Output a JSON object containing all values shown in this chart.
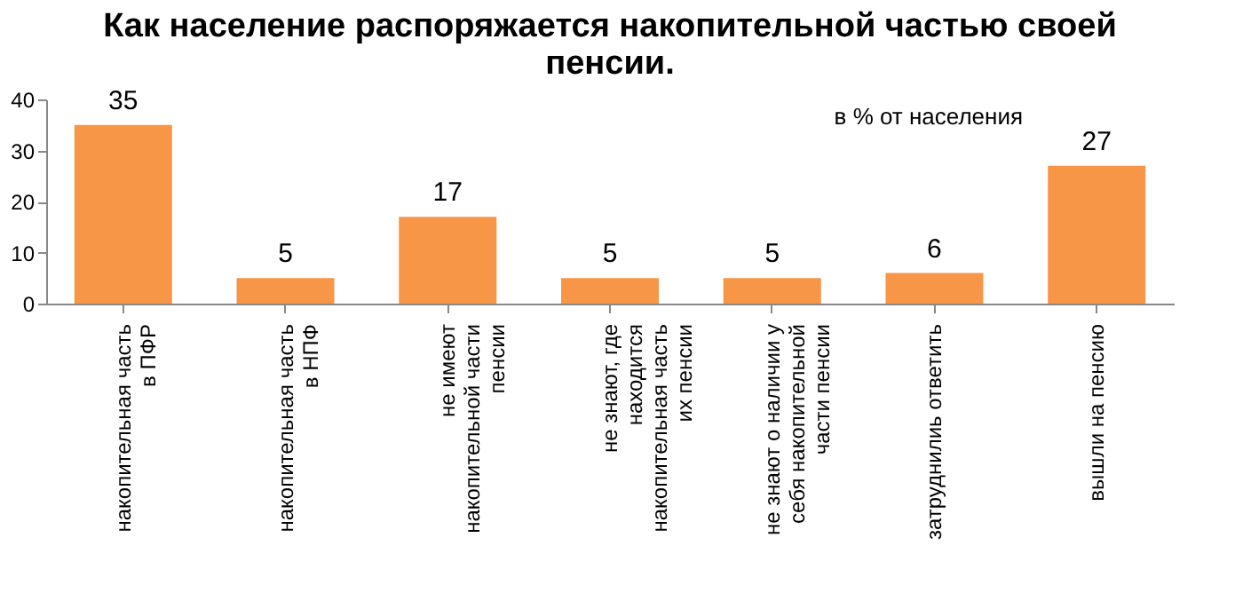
{
  "chart_data": {
    "type": "bar",
    "title": [
      "Как население распоряжается накопительной частью своей",
      "пенсии."
    ],
    "categories": [
      "накопительная часть\nв ПФР",
      "накопительная часть\nв НПФ",
      "не имеют\nнакопительной части\nпенсии",
      "не знают, где\nнаходится\nнакопительная часть\nих пенсии",
      "не знают о наличии у\nсебя накопительной\nчасти пенсии",
      "затруднилиь ответить",
      "вышли на пенсию"
    ],
    "values": [
      35,
      5,
      17,
      5,
      5,
      6,
      27
    ],
    "color": "#f79646",
    "ylim": [
      0,
      40
    ],
    "yticks": [
      0,
      10,
      20,
      30,
      40
    ],
    "grid": false,
    "data_labels": true,
    "annotations": [
      "в % от населения"
    ]
  }
}
